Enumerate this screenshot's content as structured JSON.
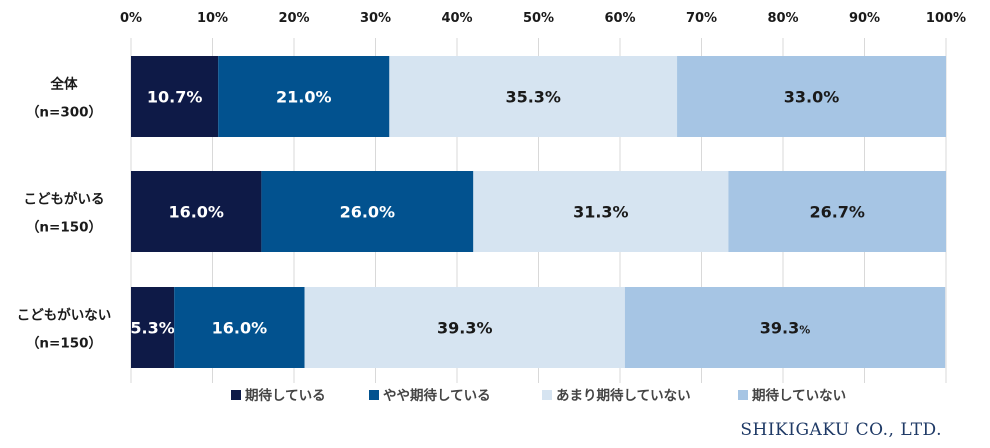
{
  "chart_data": {
    "type": "bar",
    "orientation": "horizontal",
    "stacked": true,
    "categories": [
      {
        "label": "全体",
        "n": "（n=300）"
      },
      {
        "label": "こどもがいる",
        "n": "（n=150）"
      },
      {
        "label": "こどもがいない",
        "n": "（n=150）"
      }
    ],
    "series": [
      {
        "name": "期待している",
        "color": "#0e1a47",
        "text_color": "#ffffff",
        "values": [
          10.7,
          16.0,
          5.3
        ],
        "labels": [
          "10.7%",
          "16.0%",
          "5.3%"
        ]
      },
      {
        "name": "やや期待している",
        "color": "#02528f",
        "text_color": "#ffffff",
        "values": [
          21.0,
          26.0,
          16.0
        ],
        "labels": [
          "21.0%",
          "26.0%",
          "16.0%"
        ]
      },
      {
        "name": "あまり期待していない",
        "color": "#d6e4f1",
        "text_color": "#1a1a1a",
        "values": [
          35.3,
          31.3,
          39.3
        ],
        "labels": [
          "35.3%",
          "31.3%",
          "39.3%"
        ]
      },
      {
        "name": "期待していない",
        "color": "#a6c5e4",
        "text_color": "#1a1a1a",
        "values": [
          33.0,
          26.7,
          39.3
        ],
        "labels": [
          "33.0%",
          "26.7%",
          "39.3%"
        ]
      }
    ],
    "xlim": [
      0,
      100
    ],
    "xticks": [
      "0%",
      "10%",
      "20%",
      "30%",
      "40%",
      "50%",
      "60%",
      "70%",
      "80%",
      "90%",
      "100%"
    ],
    "grid": true,
    "legend_position": "bottom"
  },
  "credit": "SHIKIGAKU CO., LTD."
}
